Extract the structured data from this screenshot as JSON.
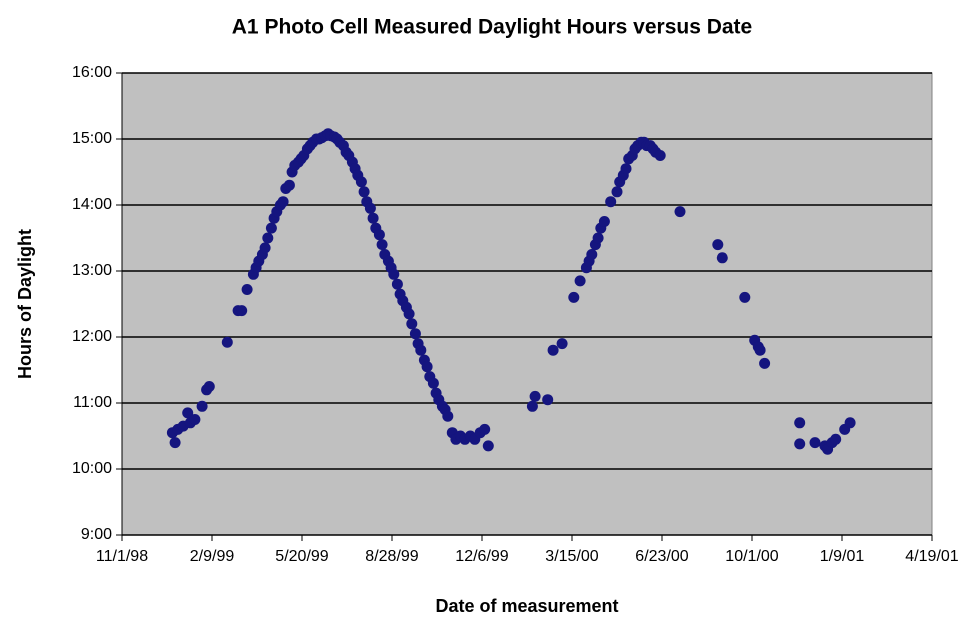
{
  "chart_data": {
    "type": "scatter",
    "title": "A1 Photo Cell Measured Daylight Hours versus Date",
    "xlabel": "Date of measurement",
    "ylabel": "Hours of Daylight",
    "grid": true,
    "color": "#15157f",
    "x": [
      36156,
      36159,
      36162,
      36168,
      36173,
      36176,
      36181,
      36189,
      36194,
      36197,
      36217,
      36229,
      36233,
      36239,
      36246,
      36249,
      36252,
      36256,
      36259,
      36262,
      36266,
      36269,
      36272,
      36276,
      36279,
      36282,
      36286,
      36289,
      36292,
      36296,
      36299,
      36302,
      36306,
      36309,
      36312,
      36316,
      36319,
      36322,
      36326,
      36329,
      36332,
      36336,
      36339,
      36342,
      36346,
      36349,
      36352,
      36356,
      36359,
      36362,
      36366,
      36369,
      36372,
      36376,
      36379,
      36382,
      36386,
      36389,
      36392,
      36396,
      36399,
      36402,
      36406,
      36409,
      36412,
      36416,
      36419,
      36422,
      36426,
      36429,
      36432,
      36436,
      36439,
      36442,
      36446,
      36449,
      36452,
      36456,
      36459,
      36462,
      36467,
      36471,
      36476,
      36481,
      36487,
      36492,
      36498,
      36503,
      36507,
      36556,
      36559,
      36573,
      36579,
      36589,
      36602,
      36609,
      36616,
      36619,
      36622,
      36626,
      36629,
      36632,
      36636,
      36643,
      36650,
      36653,
      36657,
      36660,
      36663,
      36667,
      36670,
      36673,
      36677,
      36680,
      36683,
      36687,
      36690,
      36693,
      36698,
      36720,
      36762,
      36767,
      36792,
      36803,
      36807,
      36809,
      36814,
      36853,
      36853,
      36870,
      36881,
      36884,
      36889,
      36893,
      36903,
      36909
    ],
    "values": [
      10.55,
      10.4,
      10.6,
      10.65,
      10.85,
      10.7,
      10.75,
      10.95,
      11.2,
      11.25,
      11.92,
      12.4,
      12.4,
      12.72,
      12.95,
      13.05,
      13.15,
      13.25,
      13.35,
      13.5,
      13.65,
      13.8,
      13.9,
      14.0,
      14.05,
      14.25,
      14.3,
      14.5,
      14.6,
      14.65,
      14.7,
      14.75,
      14.85,
      14.9,
      14.95,
      15.0,
      15.0,
      15.02,
      15.05,
      15.08,
      15.05,
      15.03,
      15.0,
      14.95,
      14.9,
      14.8,
      14.75,
      14.65,
      14.55,
      14.45,
      14.35,
      14.2,
      14.05,
      13.95,
      13.8,
      13.65,
      13.55,
      13.4,
      13.25,
      13.15,
      13.05,
      12.95,
      12.8,
      12.65,
      12.55,
      12.45,
      12.35,
      12.2,
      12.05,
      11.9,
      11.8,
      11.65,
      11.55,
      11.4,
      11.3,
      11.15,
      11.05,
      10.95,
      10.9,
      10.8,
      10.55,
      10.45,
      10.5,
      10.45,
      10.5,
      10.45,
      10.55,
      10.6,
      10.35,
      10.95,
      11.1,
      11.05,
      11.8,
      11.9,
      12.6,
      12.85,
      13.05,
      13.15,
      13.25,
      13.4,
      13.5,
      13.65,
      13.75,
      14.05,
      14.2,
      14.35,
      14.45,
      14.55,
      14.7,
      14.75,
      14.85,
      14.9,
      14.95,
      14.95,
      14.9,
      14.9,
      14.85,
      14.8,
      14.75,
      13.9,
      13.4,
      13.2,
      12.6,
      11.95,
      11.85,
      11.8,
      11.6,
      10.7,
      10.38,
      10.4,
      10.35,
      10.3,
      10.4,
      10.45,
      10.6,
      10.7
    ],
    "xlim": [
      36100,
      37000
    ],
    "xticks": [
      {
        "value": 36100,
        "label": "11/1/98"
      },
      {
        "value": 36200,
        "label": "2/9/99"
      },
      {
        "value": 36300,
        "label": "5/20/99"
      },
      {
        "value": 36400,
        "label": "8/28/99"
      },
      {
        "value": 36500,
        "label": "12/6/99"
      },
      {
        "value": 36600,
        "label": "3/15/00"
      },
      {
        "value": 36700,
        "label": "6/23/00"
      },
      {
        "value": 36800,
        "label": "10/1/00"
      },
      {
        "value": 36900,
        "label": "1/9/01"
      },
      {
        "value": 37000,
        "label": "4/19/01"
      }
    ],
    "ylim": [
      9,
      16
    ],
    "yticks": [
      {
        "value": 9,
        "label": "9:00"
      },
      {
        "value": 10,
        "label": "10:00"
      },
      {
        "value": 11,
        "label": "11:00"
      },
      {
        "value": 12,
        "label": "12:00"
      },
      {
        "value": 13,
        "label": "13:00"
      },
      {
        "value": 14,
        "label": "14:00"
      },
      {
        "value": 15,
        "label": "15:00"
      },
      {
        "value": 16,
        "label": "16:00"
      }
    ]
  }
}
